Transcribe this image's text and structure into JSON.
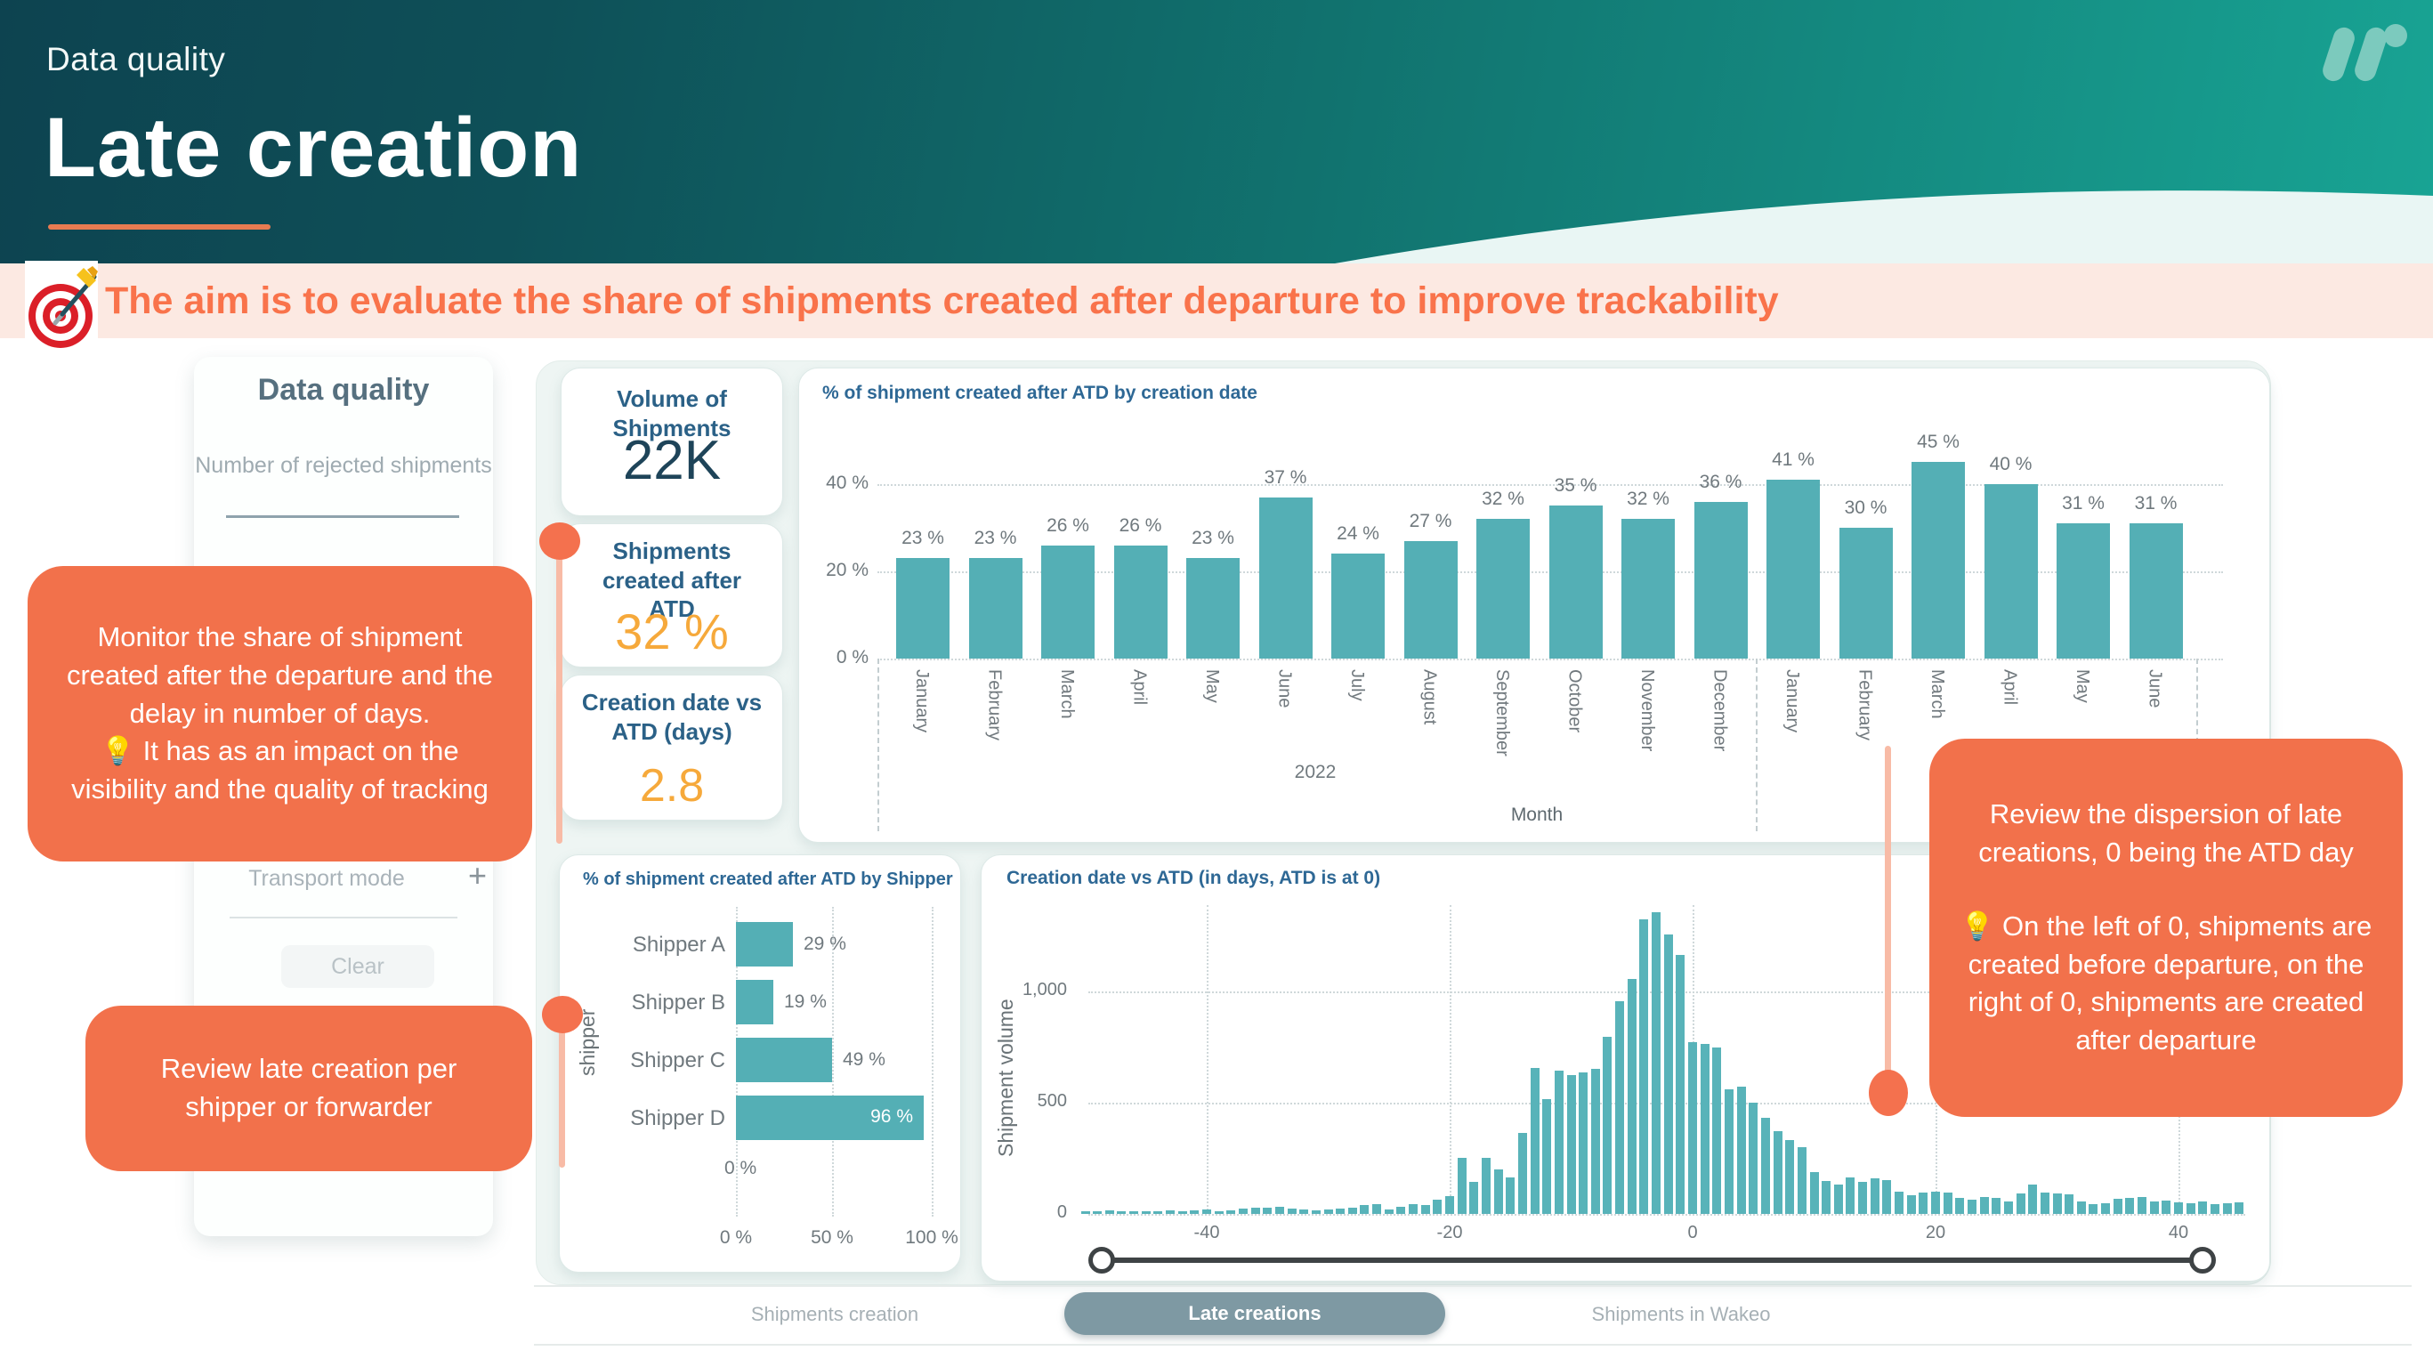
{
  "header": {
    "eyebrow": "Data quality",
    "title": "Late creation",
    "logo": "wakeo-w-logo"
  },
  "banner": {
    "icon": "target-bullseye-icon",
    "text": "The aim is to evaluate the share of shipments created after departure to improve trackability"
  },
  "sidebar": {
    "title": "Data quality",
    "item": "Number of rejected shipments",
    "filter": "Transport mode",
    "filter_icon": "+",
    "clear": "Clear"
  },
  "kpis": [
    {
      "title": "Volume of Shipments",
      "value": "22K"
    },
    {
      "title": "Shipments created after ATD",
      "value": "32 %"
    },
    {
      "title": "Creation date vs ATD (days)",
      "value": "2.8"
    }
  ],
  "callouts": {
    "monitor": {
      "p1": "Monitor the share of shipment created after the departure and the delay in number of days.",
      "p2": "💡 It has as an impact on the visibility and the quality of tracking"
    },
    "shipper": {
      "p1": "Review late creation per shipper or forwarder"
    },
    "dispersion": {
      "p1": "Review the dispersion of late creations, 0 being the ATD day",
      "p2": "💡 On the left of 0, shipments are created before departure, on the right of 0, shipments are created after departure"
    }
  },
  "tabs": [
    {
      "label": "Shipments creation",
      "active": false
    },
    {
      "label": "Late creations",
      "active": true
    },
    {
      "label": "Shipments in Wakeo",
      "active": false
    }
  ],
  "chart_data": [
    {
      "type": "bar",
      "title": "% of shipment created after ATD by creation date",
      "xlabel": "Month",
      "year_label": "2022",
      "unit": "%",
      "categories": [
        "January",
        "February",
        "March",
        "April",
        "May",
        "June",
        "July",
        "August",
        "September",
        "October",
        "November",
        "December",
        "January",
        "February",
        "March",
        "April",
        "May",
        "June"
      ],
      "values": [
        23,
        23,
        26,
        26,
        23,
        37,
        24,
        27,
        32,
        35,
        32,
        36,
        41,
        30,
        45,
        40,
        31,
        31
      ],
      "ylim": [
        0,
        45
      ],
      "yticks": [
        0,
        20,
        40
      ],
      "grid": "dotted"
    },
    {
      "type": "bar-horizontal",
      "title": "% of shipment created after ATD by Shipper",
      "ylabel": "shipper",
      "unit": "%",
      "categories": [
        "Shipper A",
        "Shipper B",
        "Shipper C",
        "Shipper D"
      ],
      "values": [
        29,
        19,
        49,
        96
      ],
      "extra_zero_label": "0 %",
      "xlim": [
        0,
        100
      ],
      "xticks": [
        0,
        50,
        100
      ],
      "grid": "dotted"
    },
    {
      "type": "histogram",
      "title": "Creation date vs ATD (in days, ATD is at 0)",
      "ylabel": "Shipment volume",
      "x_start": -50,
      "x_end": 45,
      "bin_size": 1,
      "xticks": [
        -40,
        -20,
        0,
        20,
        40
      ],
      "yticks": [
        0,
        500,
        1000
      ],
      "ylim": [
        0,
        1400
      ],
      "values": [
        12,
        8,
        14,
        6,
        12,
        8,
        12,
        14,
        10,
        14,
        18,
        12,
        14,
        22,
        28,
        28,
        32,
        22,
        18,
        14,
        18,
        22,
        28,
        38,
        42,
        20,
        32,
        42,
        38,
        65,
        80,
        250,
        145,
        250,
        200,
        165,
        365,
        655,
        515,
        645,
        625,
        635,
        650,
        795,
        955,
        1055,
        1325,
        1355,
        1255,
        1165,
        770,
        762,
        748,
        560,
        570,
        498,
        430,
        372,
        330,
        300,
        188,
        148,
        132,
        162,
        142,
        158,
        150,
        100,
        82,
        96,
        100,
        94,
        70,
        62,
        76,
        70,
        56,
        92,
        130,
        96,
        92,
        86,
        56,
        42,
        46,
        66,
        70,
        76,
        56,
        60,
        52,
        46,
        56,
        42,
        46,
        52
      ]
    }
  ],
  "colors": {
    "header_dark": "#0d4350",
    "header_teal": "#18a494",
    "wave": "#e9f6f4",
    "banner_bg": "#fce9e2",
    "banner_text": "#f9734b",
    "accent_orange": "#f2714b",
    "connector": "#f8bba6",
    "bar_teal": "#54afb5",
    "kpi_navy": "#1e4459",
    "kpi_amber": "#f6a93b",
    "chart_title_blue": "#2e6895",
    "panel_bg": "#eef5f3",
    "pill": "#7e99a3",
    "slider": "#3e4345"
  }
}
